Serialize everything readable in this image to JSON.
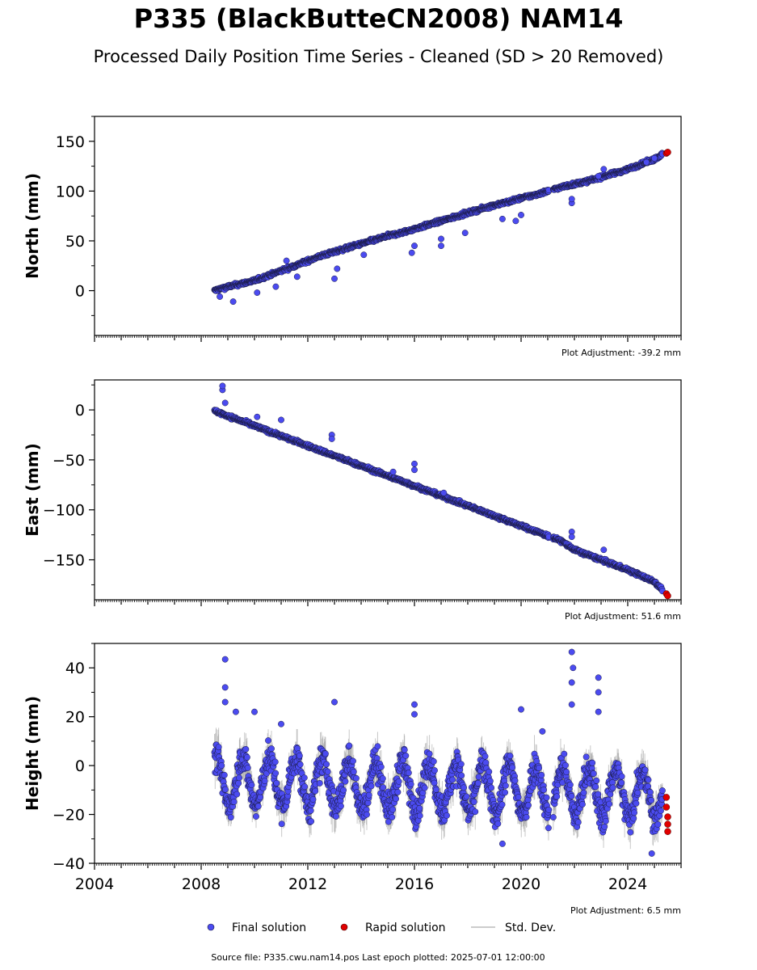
{
  "header": {
    "title": "P335 (BlackButteCN2008) NAM14",
    "subtitle": "Processed Daily Position Time Series - Cleaned (SD > 20 Removed)"
  },
  "footer": {
    "source": "Source file: P335.cwu.nam14.pos  Last epoch plotted: 2025-07-01 12:00:00"
  },
  "colors": {
    "final": "#4b4bf0",
    "rapid": "#e00000",
    "stddev": "#9a9a9a",
    "marker_edge": "#1a1a40"
  },
  "legend": [
    {
      "label": "Final solution",
      "kind": "final"
    },
    {
      "label": "Rapid solution",
      "kind": "rapid"
    },
    {
      "label": "Std. Dev.",
      "kind": "stddev"
    }
  ],
  "chart_data": [
    {
      "type": "scatter",
      "ylabel": "North (mm)",
      "xlim": [
        2004,
        2026
      ],
      "ylim": [
        -45,
        175
      ],
      "yticks": [
        0,
        50,
        100,
        150
      ],
      "ytick_labels": [
        "0",
        "50",
        "100",
        "150"
      ],
      "xtick_labels_shown": false,
      "adjustment": "Plot Adjustment: -39.2 mm",
      "series": [
        {
          "name": "Final solution",
          "x": [
            2008.5,
            2009.0,
            2009.5,
            2010.0,
            2010.5,
            2011.0,
            2011.5,
            2012.0,
            2012.5,
            2013.0,
            2013.5,
            2014.0,
            2014.5,
            2015.0,
            2015.5,
            2016.0,
            2016.5,
            2017.0,
            2017.5,
            2018.0,
            2018.5,
            2019.0,
            2019.5,
            2020.0,
            2020.5,
            2021.0,
            2021.5,
            2022.0,
            2022.5,
            2023.0,
            2023.5,
            2024.0,
            2024.5,
            2025.0,
            2025.3
          ],
          "y": [
            0,
            4,
            7,
            10,
            15,
            20,
            25,
            30,
            35,
            39,
            43,
            47,
            51,
            55,
            58,
            62,
            66,
            70,
            74,
            78,
            82,
            86,
            89,
            93,
            96,
            100,
            104,
            107,
            110,
            114,
            118,
            122,
            127,
            132,
            137
          ]
        },
        {
          "name": "Rapid solution",
          "x": [
            2025.45,
            2025.5
          ],
          "y": [
            138,
            139
          ]
        }
      ],
      "outliers": [
        {
          "x": 2008.7,
          "y": -6
        },
        {
          "x": 2009.2,
          "y": -11
        },
        {
          "x": 2010.1,
          "y": -2
        },
        {
          "x": 2010.8,
          "y": 4
        },
        {
          "x": 2011.2,
          "y": 30
        },
        {
          "x": 2011.6,
          "y": 14
        },
        {
          "x": 2013.0,
          "y": 12
        },
        {
          "x": 2013.1,
          "y": 22
        },
        {
          "x": 2014.1,
          "y": 36
        },
        {
          "x": 2015.9,
          "y": 38
        },
        {
          "x": 2016.0,
          "y": 45
        },
        {
          "x": 2017.0,
          "y": 45
        },
        {
          "x": 2017.0,
          "y": 52
        },
        {
          "x": 2017.9,
          "y": 58
        },
        {
          "x": 2019.3,
          "y": 72
        },
        {
          "x": 2019.8,
          "y": 70
        },
        {
          "x": 2020.0,
          "y": 76
        },
        {
          "x": 2021.9,
          "y": 88
        },
        {
          "x": 2021.9,
          "y": 92
        },
        {
          "x": 2022.9,
          "y": 115
        },
        {
          "x": 2023.1,
          "y": 122
        },
        {
          "x": 2024.7,
          "y": 129
        },
        {
          "x": 2025.0,
          "y": 133
        }
      ]
    },
    {
      "type": "scatter",
      "ylabel": "East (mm)",
      "xlim": [
        2004,
        2026
      ],
      "ylim": [
        -190,
        30
      ],
      "yticks": [
        -150,
        -100,
        -50,
        0
      ],
      "ytick_labels": [
        "−150",
        "−100",
        "−50",
        "0"
      ],
      "xtick_labels_shown": false,
      "adjustment": "Plot Adjustment: 51.6 mm",
      "series": [
        {
          "name": "Final solution",
          "x": [
            2008.5,
            2009.0,
            2009.5,
            2010.0,
            2010.5,
            2011.0,
            2011.5,
            2012.0,
            2012.5,
            2013.0,
            2013.5,
            2014.0,
            2014.5,
            2015.0,
            2015.5,
            2016.0,
            2016.5,
            2017.0,
            2017.5,
            2018.0,
            2018.5,
            2019.0,
            2019.5,
            2020.0,
            2020.5,
            2021.0,
            2021.5,
            2022.0,
            2022.5,
            2023.0,
            2023.5,
            2024.0,
            2024.5,
            2025.0,
            2025.3
          ],
          "y": [
            -1,
            -6,
            -11,
            -16,
            -21,
            -26,
            -31,
            -36,
            -41,
            -46,
            -51,
            -56,
            -61,
            -66,
            -71,
            -76,
            -81,
            -86,
            -91,
            -96,
            -101,
            -106,
            -111,
            -116,
            -121,
            -126,
            -131,
            -140,
            -145,
            -150,
            -155,
            -160,
            -166,
            -172,
            -180
          ]
        },
        {
          "name": "Rapid solution",
          "x": [
            2025.45,
            2025.5
          ],
          "y": [
            -184,
            -186
          ]
        }
      ],
      "outliers": [
        {
          "x": 2008.8,
          "y": 20
        },
        {
          "x": 2008.8,
          "y": 24
        },
        {
          "x": 2008.9,
          "y": 7
        },
        {
          "x": 2010.1,
          "y": -7
        },
        {
          "x": 2011.0,
          "y": -10
        },
        {
          "x": 2012.9,
          "y": -25
        },
        {
          "x": 2012.9,
          "y": -29
        },
        {
          "x": 2015.2,
          "y": -62
        },
        {
          "x": 2016.0,
          "y": -54
        },
        {
          "x": 2016.0,
          "y": -60
        },
        {
          "x": 2017.1,
          "y": -83
        },
        {
          "x": 2021.9,
          "y": -122
        },
        {
          "x": 2021.9,
          "y": -127
        },
        {
          "x": 2023.1,
          "y": -140
        }
      ]
    },
    {
      "type": "scatter",
      "ylabel": "Height (mm)",
      "xlim": [
        2004,
        2026
      ],
      "ylim": [
        -40,
        50
      ],
      "yticks": [
        -40,
        -20,
        0,
        20,
        40
      ],
      "ytick_labels": [
        "−40",
        "−20",
        "0",
        "20",
        "40"
      ],
      "xticks": [
        2004,
        2008,
        2012,
        2016,
        2020,
        2024
      ],
      "xtick_labels": [
        "2004",
        "2008",
        "2012",
        "2016",
        "2020",
        "2024"
      ],
      "xtick_labels_shown": true,
      "adjustment": "Plot Adjustment: 6.5 mm",
      "seasonal_amplitude_mm": 11,
      "series": [
        {
          "name": "Final solution",
          "x": [
            2008.5,
            2009.0,
            2009.5,
            2010.0,
            2010.5,
            2011.0,
            2011.5,
            2012.0,
            2012.5,
            2013.0,
            2013.5,
            2014.0,
            2014.5,
            2015.0,
            2015.5,
            2016.0,
            2016.5,
            2017.0,
            2017.5,
            2018.0,
            2018.5,
            2019.0,
            2019.5,
            2020.0,
            2020.5,
            2021.0,
            2021.5,
            2022.0,
            2022.5,
            2023.0,
            2023.5,
            2024.0,
            2024.5,
            2025.0,
            2025.3
          ],
          "y": [
            3,
            10,
            -5,
            8,
            -8,
            5,
            -12,
            2,
            -14,
            4,
            -10,
            3,
            -12,
            2,
            -12,
            4,
            -16,
            0,
            -18,
            -4,
            -14,
            -6,
            -20,
            0,
            -12,
            -2,
            -10,
            -6,
            -14,
            -4,
            -18,
            -10,
            -20,
            -14,
            -25
          ]
        },
        {
          "name": "Rapid solution",
          "x": [
            2025.45,
            2025.45,
            2025.5,
            2025.5,
            2025.5
          ],
          "y": [
            -13,
            -17,
            -21,
            -24,
            -27
          ]
        }
      ],
      "outliers": [
        {
          "x": 2008.9,
          "y": 43.5
        },
        {
          "x": 2008.9,
          "y": 32
        },
        {
          "x": 2008.9,
          "y": 26
        },
        {
          "x": 2009.3,
          "y": 22
        },
        {
          "x": 2010.0,
          "y": 22
        },
        {
          "x": 2011.0,
          "y": 17
        },
        {
          "x": 2013.0,
          "y": 26
        },
        {
          "x": 2016.0,
          "y": 25
        },
        {
          "x": 2016.0,
          "y": 21
        },
        {
          "x": 2020.0,
          "y": 23
        },
        {
          "x": 2020.8,
          "y": 14
        },
        {
          "x": 2021.9,
          "y": 46.5
        },
        {
          "x": 2021.95,
          "y": 40
        },
        {
          "x": 2021.9,
          "y": 34
        },
        {
          "x": 2021.9,
          "y": 25
        },
        {
          "x": 2022.9,
          "y": 36
        },
        {
          "x": 2022.9,
          "y": 30
        },
        {
          "x": 2022.9,
          "y": 22
        },
        {
          "x": 2019.3,
          "y": -32
        },
        {
          "x": 2024.9,
          "y": -36
        }
      ]
    }
  ]
}
